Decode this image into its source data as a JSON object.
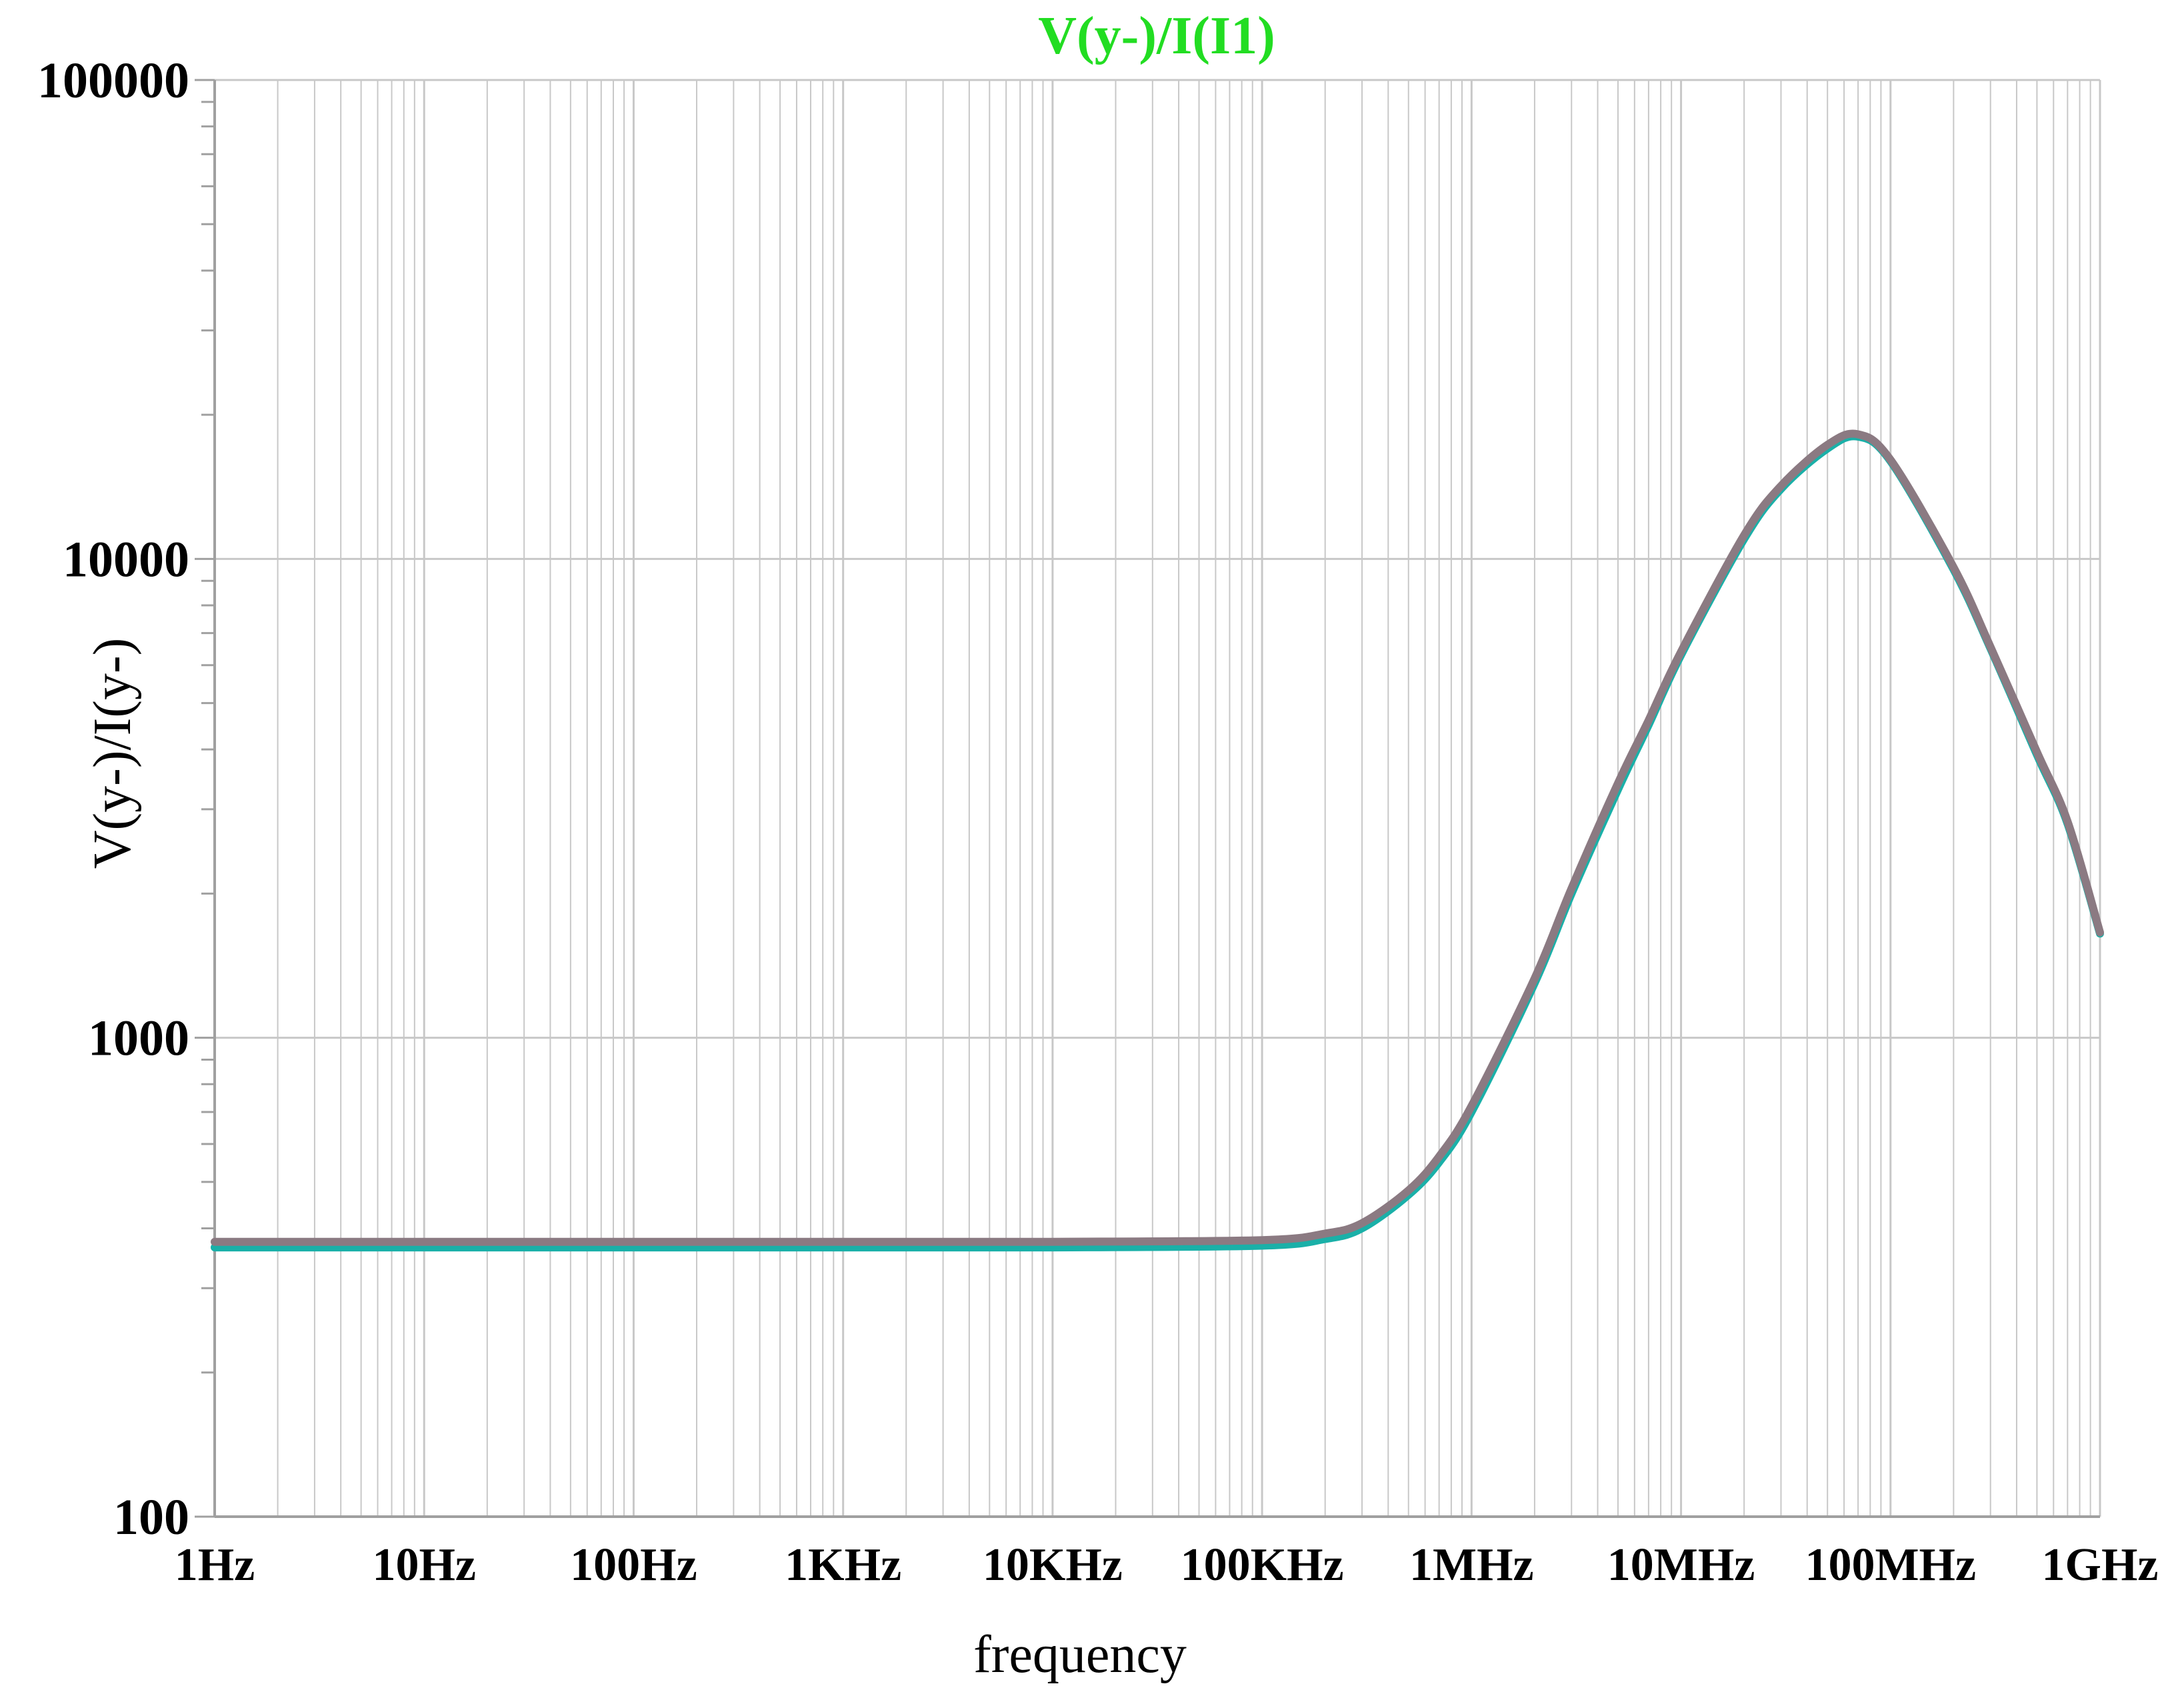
{
  "chart_data": {
    "type": "line",
    "title": "V(y-)/I(I1)",
    "xlabel": "frequency",
    "ylabel": "V(y-)/I(y-)",
    "x_scale": "log",
    "y_scale": "log",
    "xlim": [
      1,
      1000000000
    ],
    "ylim": [
      100,
      100000
    ],
    "grid": true,
    "x_ticks": [
      {
        "value": 1,
        "label": "1Hz"
      },
      {
        "value": 10,
        "label": "10Hz"
      },
      {
        "value": 100,
        "label": "100Hz"
      },
      {
        "value": 1000,
        "label": "1KHz"
      },
      {
        "value": 10000,
        "label": "10KHz"
      },
      {
        "value": 100000,
        "label": "100KHz"
      },
      {
        "value": 1000000,
        "label": "1MHz"
      },
      {
        "value": 10000000,
        "label": "10MHz"
      },
      {
        "value": 100000000,
        "label": "100MHz"
      },
      {
        "value": 1000000000,
        "label": "1GHz"
      }
    ],
    "y_ticks": [
      {
        "value": 100,
        "label": "100"
      },
      {
        "value": 1000,
        "label": "1000"
      },
      {
        "value": 10000,
        "label": "10000"
      },
      {
        "value": 100000,
        "label": "100000"
      }
    ],
    "colors": {
      "title": "#22dd22",
      "grid": "#c8c8c8",
      "axis": "#a0a0a0"
    },
    "series": [
      {
        "color": "#1ab0a8",
        "x": [
          1,
          10,
          100,
          1000,
          10000,
          100000,
          200000,
          300000,
          500000,
          700000,
          1000000,
          2000000,
          3000000,
          5000000,
          7000000,
          10000000,
          20000000,
          30000000,
          50000000,
          70000000,
          100000000,
          200000000,
          300000000,
          500000000,
          700000000,
          1000000000
        ],
        "y": [
          365,
          365,
          365,
          365,
          365,
          368,
          380,
          400,
          470,
          550,
          700,
          1300,
          2000,
          3300,
          4500,
          6300,
          11000,
          14000,
          17000,
          18000,
          16000,
          9500,
          6500,
          3900,
          2800,
          1650
        ]
      },
      {
        "color": "#8b7a82",
        "x": [
          1,
          10,
          100,
          1000,
          10000,
          100000,
          200000,
          300000,
          500000,
          700000,
          1000000,
          2000000,
          3000000,
          5000000,
          7000000,
          10000000,
          20000000,
          30000000,
          50000000,
          70000000,
          100000000,
          200000000,
          300000000,
          500000000,
          700000000,
          1000000000
        ],
        "y": [
          375,
          375,
          375,
          375,
          375,
          378,
          390,
          410,
          480,
          565,
          720,
          1330,
          2050,
          3400,
          4600,
          6400,
          11200,
          14200,
          17300,
          18200,
          16100,
          9600,
          6550,
          3950,
          2830,
          1660
        ]
      }
    ]
  }
}
